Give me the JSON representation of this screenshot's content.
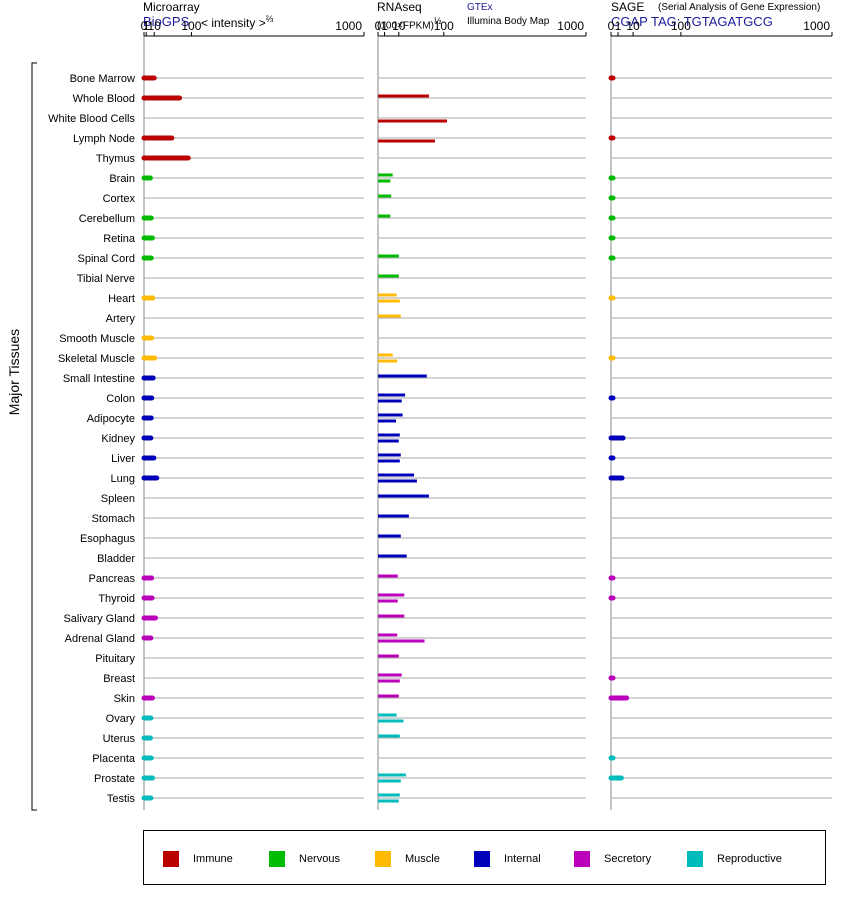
{
  "headers": {
    "microarray": {
      "title": "Microarray",
      "source": "BioGPS",
      "unit_prefix": "< intensity >",
      "unit_exp": "⅔"
    },
    "rnaseq": {
      "title": "RNAseq",
      "unit_prefix": "(100×FPKM)",
      "unit_exp": "½",
      "source_top": "GTEx",
      "source_bottom": "Illumina Body Map"
    },
    "sage": {
      "title": "SAGE",
      "subtitle": "(Serial Analysis of Gene Expression)",
      "tag": "CGAP TAG: TGTAGATGCG"
    }
  },
  "y_axis_label": "Major Tissues",
  "tick_labels": [
    "0",
    "1",
    "10",
    "100",
    "1000"
  ],
  "colors": {
    "immune": "#bb0000",
    "nervous": "#00bb00",
    "muscle": "#ffbb00",
    "internal": "#0000bb",
    "secretory": "#bb00bb",
    "reproductive": "#00bbbb"
  },
  "legend": [
    {
      "key": "immune",
      "label": "Immune"
    },
    {
      "key": "nervous",
      "label": "Nervous"
    },
    {
      "key": "muscle",
      "label": "Muscle"
    },
    {
      "key": "internal",
      "label": "Internal"
    },
    {
      "key": "secretory",
      "label": "Secretory"
    },
    {
      "key": "reproductive",
      "label": "Reproductive"
    }
  ],
  "chart_data": {
    "type": "bar",
    "orientation": "horizontal",
    "scale": "power",
    "x_ticks": [
      0,
      1,
      10,
      100,
      1000
    ],
    "xlim": [
      0,
      1000
    ],
    "categories": [
      {
        "name": "Bone Marrow",
        "group": "immune",
        "microarray": 10,
        "gtex": null,
        "ibm": null,
        "sage": 0.05
      },
      {
        "name": "Whole Blood",
        "group": "immune",
        "microarray": 65,
        "gtex": 60,
        "ibm": null,
        "sage": null
      },
      {
        "name": "White Blood Cells",
        "group": "immune",
        "microarray": null,
        "gtex": null,
        "ibm": 110,
        "sage": null
      },
      {
        "name": "Lymph Node",
        "group": "immune",
        "microarray": 45,
        "gtex": null,
        "ibm": 75,
        "sage": 0.05
      },
      {
        "name": "Thymus",
        "group": "immune",
        "microarray": 90,
        "gtex": null,
        "ibm": null,
        "sage": null
      },
      {
        "name": "Brain",
        "group": "nervous",
        "microarray": 5,
        "gtex": 5,
        "ibm": 3.5,
        "sage": 0.02
      },
      {
        "name": "Cortex",
        "group": "nervous",
        "microarray": null,
        "gtex": 4,
        "ibm": null,
        "sage": 0.02
      },
      {
        "name": "Cerebellum",
        "group": "nervous",
        "microarray": 6,
        "gtex": 3.5,
        "ibm": null,
        "sage": 0.02
      },
      {
        "name": "Retina",
        "group": "nervous",
        "microarray": 7.5,
        "gtex": null,
        "ibm": null,
        "sage": 0.02
      },
      {
        "name": "Spinal Cord",
        "group": "nervous",
        "microarray": 6,
        "gtex": 10,
        "ibm": null,
        "sage": 0.02
      },
      {
        "name": "Tibial Nerve",
        "group": "nervous",
        "microarray": null,
        "gtex": 10,
        "ibm": null,
        "sage": null
      },
      {
        "name": "Heart",
        "group": "muscle",
        "microarray": 8,
        "gtex": 8,
        "ibm": 11,
        "sage": 0.01
      },
      {
        "name": "Artery",
        "group": "muscle",
        "microarray": null,
        "gtex": 12,
        "ibm": null,
        "sage": null
      },
      {
        "name": "Smooth Muscle",
        "group": "muscle",
        "microarray": 6.5,
        "gtex": null,
        "ibm": null,
        "sage": null
      },
      {
        "name": "Skeletal Muscle",
        "group": "muscle",
        "microarray": 10.5,
        "gtex": 5,
        "ibm": 8.5,
        "sage": 0.01
      },
      {
        "name": "Small Intestine",
        "group": "internal",
        "microarray": 8.5,
        "gtex": 55,
        "ibm": null,
        "sage": null
      },
      {
        "name": "Colon",
        "group": "internal",
        "microarray": 6.5,
        "gtex": 17,
        "ibm": 13,
        "sage": 0.05
      },
      {
        "name": "Adipocyte",
        "group": "internal",
        "microarray": 6,
        "gtex": 14,
        "ibm": 7.5,
        "sage": null
      },
      {
        "name": "Kidney",
        "group": "internal",
        "microarray": 5.5,
        "gtex": 11,
        "ibm": 10,
        "sage": 3
      },
      {
        "name": "Liver",
        "group": "internal",
        "microarray": 9.5,
        "gtex": 12,
        "ibm": 11,
        "sage": 0.05
      },
      {
        "name": "Lung",
        "group": "internal",
        "microarray": 14,
        "gtex": 30,
        "ibm": 35,
        "sage": 2.5
      },
      {
        "name": "Spleen",
        "group": "internal",
        "microarray": null,
        "gtex": 60,
        "ibm": null,
        "sage": null
      },
      {
        "name": "Stomach",
        "group": "internal",
        "microarray": null,
        "gtex": 22,
        "ibm": null,
        "sage": null
      },
      {
        "name": "Esophagus",
        "group": "internal",
        "microarray": null,
        "gtex": 12,
        "ibm": null,
        "sage": null
      },
      {
        "name": "Bladder",
        "group": "internal",
        "microarray": null,
        "gtex": 19,
        "ibm": null,
        "sage": null
      },
      {
        "name": "Pancreas",
        "group": "secretory",
        "microarray": 6.5,
        "gtex": 9,
        "ibm": null,
        "sage": 0.05
      },
      {
        "name": "Thyroid",
        "group": "secretory",
        "microarray": 7,
        "gtex": 16,
        "ibm": 9,
        "sage": 0.05
      },
      {
        "name": "Salivary Gland",
        "group": "secretory",
        "microarray": 12,
        "gtex": 16,
        "ibm": null,
        "sage": null
      },
      {
        "name": "Adrenal Gland",
        "group": "secretory",
        "microarray": 5.5,
        "gtex": 8.5,
        "ibm": 50,
        "sage": null
      },
      {
        "name": "Pituitary",
        "group": "secretory",
        "microarray": null,
        "gtex": 10,
        "ibm": null,
        "sage": null
      },
      {
        "name": "Breast",
        "group": "secretory",
        "microarray": null,
        "gtex": 13,
        "ibm": 11,
        "sage": 0.05
      },
      {
        "name": "Skin",
        "group": "secretory",
        "microarray": 7.5,
        "gtex": 10,
        "ibm": null,
        "sage": 5
      },
      {
        "name": "Ovary",
        "group": "reproductive",
        "microarray": 5.5,
        "gtex": 8,
        "ibm": 15,
        "sage": null
      },
      {
        "name": "Uterus",
        "group": "reproductive",
        "microarray": 5,
        "gtex": 11,
        "ibm": null,
        "sage": null
      },
      {
        "name": "Placenta",
        "group": "reproductive",
        "microarray": 6,
        "gtex": null,
        "ibm": null,
        "sage": 0.02
      },
      {
        "name": "Prostate",
        "group": "reproductive",
        "microarray": 7.5,
        "gtex": 18,
        "ibm": 12,
        "sage": 2.2
      },
      {
        "name": "Testis",
        "group": "reproductive",
        "microarray": 5.5,
        "gtex": 11,
        "ibm": 10,
        "sage": null
      }
    ]
  }
}
